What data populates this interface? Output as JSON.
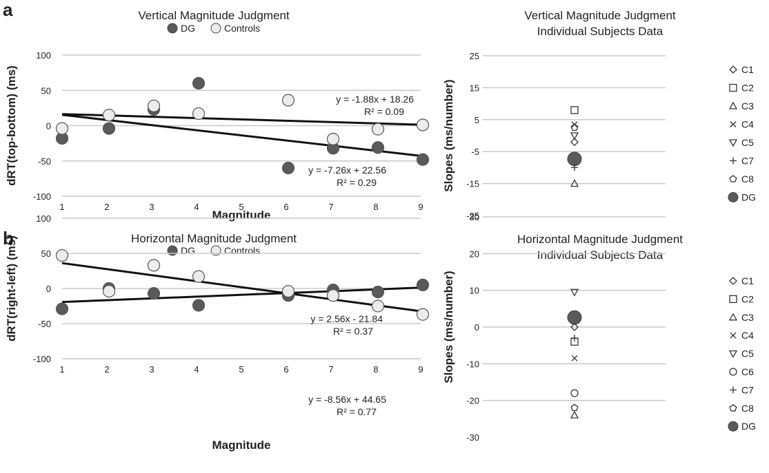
{
  "panels": {
    "a": "a",
    "b": "b"
  },
  "colors": {
    "dg": "#5a5a5a",
    "controls": "#ececec",
    "grid": "#c8c8c8",
    "fit": "#111111"
  },
  "chart_data": [
    {
      "id": "a-scatter",
      "panel": "a",
      "type": "scatter",
      "title": "Vertical Magnitude Judgment",
      "xlabel": "Magnitude",
      "ylabel": "dRT(top-bottom) (ms)",
      "xlim": [
        1,
        9
      ],
      "ylim": [
        -100,
        100
      ],
      "yticks": [
        100,
        50,
        0,
        -50,
        -100
      ],
      "xticks": [
        1,
        2,
        3,
        4,
        5,
        6,
        7,
        8,
        9
      ],
      "grid": true,
      "legend": "top",
      "series": [
        {
          "name": "DG",
          "marker": "filled-circle",
          "x": [
            1,
            2,
            3,
            4,
            6,
            7,
            8,
            9
          ],
          "y": [
            -18,
            -4,
            23,
            60,
            -60,
            -32,
            -31,
            -48
          ],
          "fit": {
            "slope": -7.26,
            "intercept": 22.56,
            "equation": "y = -7.26x + 22.56",
            "r2": "R² = 0.29"
          }
        },
        {
          "name": "Controls",
          "marker": "open-circle",
          "x": [
            1,
            2,
            3,
            4,
            6,
            7,
            8,
            9
          ],
          "y": [
            -4,
            15,
            28,
            17,
            36,
            -19,
            -5,
            1
          ],
          "fit": {
            "slope": -1.88,
            "intercept": 18.26,
            "equation": "y = -1.88x + 18.26",
            "r2": "R² = 0.09"
          }
        }
      ]
    },
    {
      "id": "a-slopes",
      "panel": "a",
      "type": "scatter",
      "title": "Vertical Magnitude Judgment",
      "subtitle": "Individual Subjects Data",
      "ylabel": "Slopes (ms/number)",
      "ylim": [
        -25,
        25
      ],
      "yticks": [
        25,
        15,
        5,
        -5,
        -15,
        -25
      ],
      "grid": true,
      "legend": "right",
      "subjects": [
        {
          "name": "C1",
          "symbol": "◇",
          "slope": -2
        },
        {
          "name": "C2",
          "symbol": "□",
          "slope": 8
        },
        {
          "name": "C3",
          "symbol": "△",
          "slope": -15
        },
        {
          "name": "C4",
          "symbol": "×",
          "slope": 3.5
        },
        {
          "name": "C5",
          "symbol": "▽",
          "slope": 0
        },
        {
          "name": "C7",
          "symbol": "+",
          "slope": -10
        },
        {
          "name": "C8",
          "symbol": "⬠",
          "slope": 2.5
        },
        {
          "name": "DG",
          "symbol": "●",
          "slope": -7.3
        }
      ]
    },
    {
      "id": "b-scatter",
      "panel": "b",
      "type": "scatter",
      "title": "Horizontal Magnitude Judgment",
      "xlabel": "Magnitude",
      "ylabel": "dRT(right-left) (ms)",
      "xlim": [
        1,
        9
      ],
      "ylim": [
        -100,
        100
      ],
      "yticks": [
        100,
        50,
        0,
        -50,
        -100
      ],
      "xticks": [
        1,
        2,
        3,
        4,
        5,
        6,
        7,
        8,
        9
      ],
      "grid": true,
      "legend": "top",
      "series": [
        {
          "name": "DG",
          "marker": "filled-circle",
          "x": [
            1,
            2,
            3,
            4,
            6,
            7,
            8,
            9
          ],
          "y": [
            -29,
            0,
            -7,
            -24,
            -10,
            -2,
            -5,
            5
          ],
          "fit": {
            "slope": 2.56,
            "intercept": -21.84,
            "equation": "y = 2.56x - 21.84",
            "r2": "R² = 0.37"
          }
        },
        {
          "name": "Controls",
          "marker": "open-circle",
          "x": [
            1,
            2,
            3,
            4,
            6,
            7,
            8,
            9
          ],
          "y": [
            47,
            -4,
            33,
            17,
            -4,
            -10,
            -25,
            -37
          ],
          "fit": {
            "slope": -8.56,
            "intercept": 44.65,
            "equation": "y = -8.56x + 44.65",
            "r2": "R² = 0.77"
          }
        }
      ]
    },
    {
      "id": "b-slopes",
      "panel": "b",
      "type": "scatter",
      "title": "Horizontal Magnitude Judgment",
      "subtitle": "Individual Subjects Data",
      "ylabel": "Slopes (ms/number)",
      "ylim": [
        -30,
        30
      ],
      "yticks": [
        30,
        20,
        10,
        0,
        -10,
        -20,
        -30
      ],
      "grid": true,
      "legend": "right",
      "subjects": [
        {
          "name": "C1",
          "symbol": "◇",
          "slope": 0
        },
        {
          "name": "C2",
          "symbol": "□",
          "slope": -4
        },
        {
          "name": "C3",
          "symbol": "△",
          "slope": -24
        },
        {
          "name": "C4",
          "symbol": "×",
          "slope": -8.5
        },
        {
          "name": "C5",
          "symbol": "▽",
          "slope": 9.5
        },
        {
          "name": "C6",
          "symbol": "○",
          "slope": -18
        },
        {
          "name": "C7",
          "symbol": "+",
          "slope": -3
        },
        {
          "name": "C8",
          "symbol": "⬠",
          "slope": -22
        },
        {
          "name": "DG",
          "symbol": "●",
          "slope": 2.6
        }
      ]
    }
  ]
}
